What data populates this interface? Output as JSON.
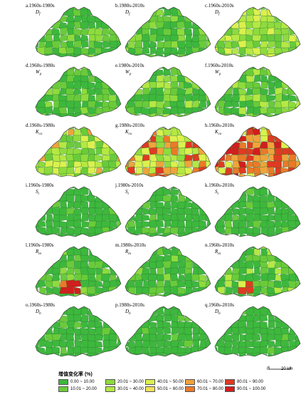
{
  "panels": [
    {
      "id": "a",
      "label": "a.1960s-1980s",
      "var": "D",
      "sub": "f",
      "palette": "low"
    },
    {
      "id": "b",
      "label": "b.1980s-2010s",
      "var": "D",
      "sub": "f",
      "palette": "low"
    },
    {
      "id": "c",
      "label": "c.1960s-2010s",
      "var": "D",
      "sub": "f",
      "palette": "mid"
    },
    {
      "id": "d1",
      "label": "d.1960s-1980s",
      "var": "W",
      "sub": "p",
      "palette": "low"
    },
    {
      "id": "e",
      "label": "e.1980s-2010s",
      "var": "W",
      "sub": "p",
      "palette": "lowmid"
    },
    {
      "id": "f",
      "label": "f.1960s-2010s",
      "var": "W",
      "sub": "p",
      "palette": "lowmid"
    },
    {
      "id": "d2",
      "label": "d.1960s-1980s",
      "var": "K",
      "sub": "co",
      "palette": "mixed"
    },
    {
      "id": "g",
      "label": "g.1980s-2010s",
      "var": "K",
      "sub": "co",
      "palette": "high"
    },
    {
      "id": "h",
      "label": "h.1960s-2010s",
      "var": "K",
      "sub": "co",
      "palette": "veryhigh"
    },
    {
      "id": "i",
      "label": "i.1960s-1980s",
      "var": "S",
      "sub": "t",
      "palette": "flat"
    },
    {
      "id": "j",
      "label": "j.1980s-2010s",
      "var": "S",
      "sub": "t",
      "palette": "flat"
    },
    {
      "id": "k",
      "label": "k.1960s-2010s",
      "var": "S",
      "sub": "t",
      "palette": "flat"
    },
    {
      "id": "l",
      "label": "l.1960s-1980s",
      "var": "R",
      "sub": "m",
      "palette": "redspot"
    },
    {
      "id": "m",
      "label": "m.1980s-2010s",
      "var": "R",
      "sub": "m",
      "palette": "low"
    },
    {
      "id": "n",
      "label": "n.1960s-2010s",
      "var": "R",
      "sub": "m",
      "palette": "redspot2"
    },
    {
      "id": "o",
      "label": "o.1960s-1980s",
      "var": "D",
      "sub": "b",
      "palette": "flat"
    },
    {
      "id": "p",
      "label": "p.1980s-2010s",
      "var": "D",
      "sub": "b",
      "palette": "flat"
    },
    {
      "id": "q",
      "label": "q.1960s-2010s",
      "var": "D",
      "sub": "b",
      "palette": "flat"
    }
  ],
  "legend": {
    "title": "增值变化率 (%)",
    "items": [
      {
        "range": "0.00 ~ 10.00",
        "color": "#3db83d"
      },
      {
        "range": "10.01 ~ 20.00",
        "color": "#6acb3a"
      },
      {
        "range": "20.01 ~ 30.00",
        "color": "#8fdb3e"
      },
      {
        "range": "30.01 ~ 40.00",
        "color": "#b5e844"
      },
      {
        "range": "40.01 ~ 50.00",
        "color": "#dcf04f"
      },
      {
        "range": "50.01 ~ 60.00",
        "color": "#f0e05a"
      },
      {
        "range": "60.01 ~ 70.00",
        "color": "#f0a33c"
      },
      {
        "range": "70.01 ~ 80.00",
        "color": "#ea7a2a"
      },
      {
        "range": "80.01 ~ 90.00",
        "color": "#e03a22"
      },
      {
        "range": "90.01 ~ 100.00",
        "color": "#d21e1e"
      }
    ]
  },
  "scalebar": {
    "zero": "0",
    "label": "20 km"
  }
}
